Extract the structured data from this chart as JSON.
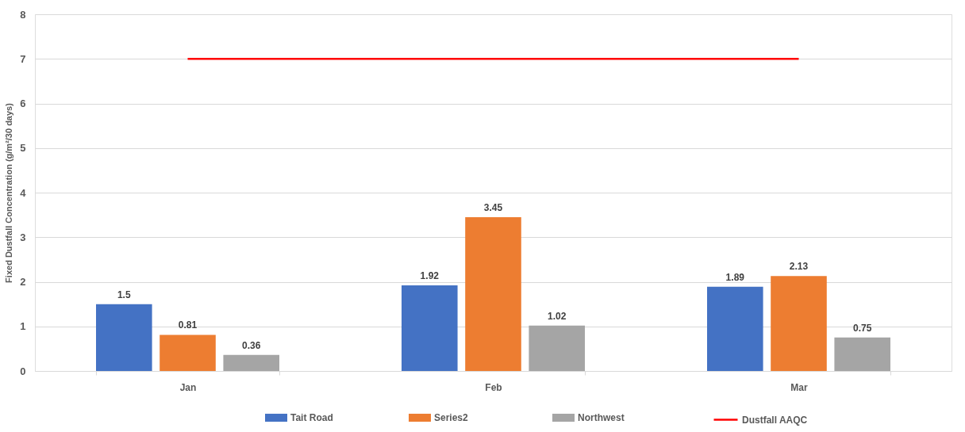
{
  "chart_data": {
    "type": "bar",
    "ylabel": "Fixed Dustfall Concentration (g/m²/30 days)",
    "categories": [
      "Jan",
      "Feb",
      "Mar"
    ],
    "series": [
      {
        "name": "Tait Road",
        "color": "#4472c4",
        "values": [
          1.5,
          1.92,
          1.89
        ],
        "value_labels": [
          "1.5",
          "1.92",
          "1.89"
        ]
      },
      {
        "name": "Series2",
        "color": "#ed7d31",
        "values": [
          0.81,
          3.45,
          2.13
        ],
        "value_labels": [
          "0.81",
          "3.45",
          "2.13"
        ]
      },
      {
        "name": "Northwest",
        "color": "#a5a5a5",
        "values": [
          0.36,
          1.02,
          0.75
        ],
        "value_labels": [
          "0.36",
          "1.02",
          "0.75"
        ]
      },
      {
        "name": "Dustfall AAQC",
        "type": "line",
        "color": "#ff0000",
        "values": [
          7,
          7,
          7
        ]
      }
    ],
    "ylim": [
      0,
      8
    ],
    "yticks": [
      0,
      1,
      2,
      3,
      4,
      5,
      6,
      7,
      8
    ],
    "grid": "y",
    "legend": "bottom"
  }
}
